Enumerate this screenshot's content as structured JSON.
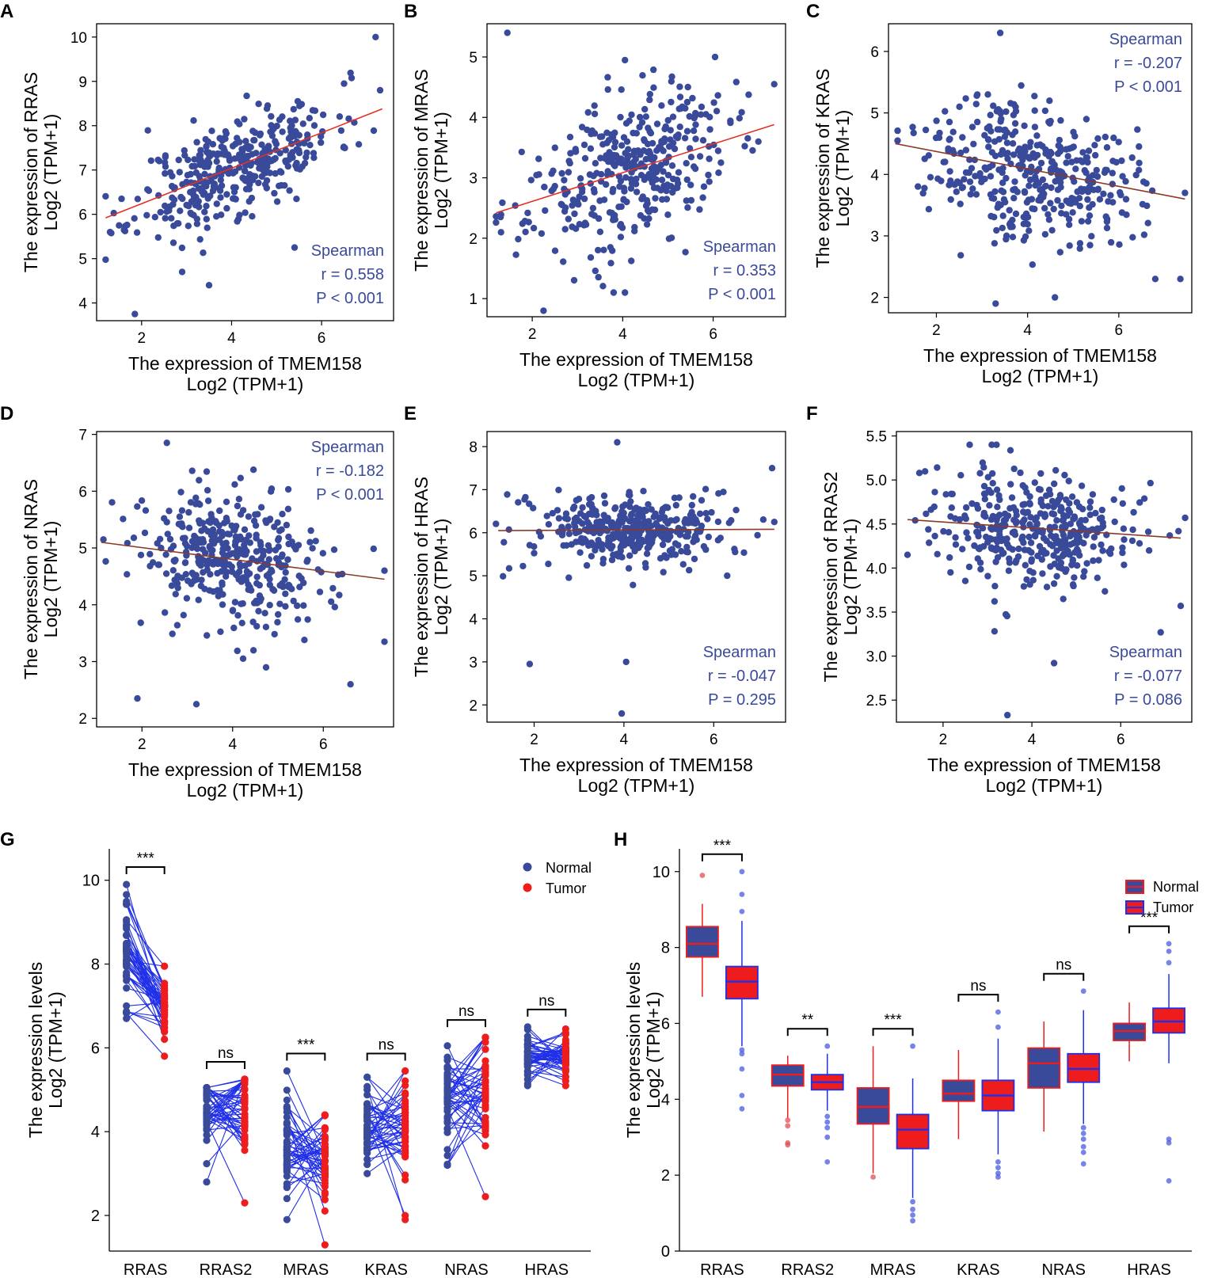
{
  "figure": {
    "colors": {
      "point": "#3a4a9a",
      "stat_text": "#3a4a9a",
      "fit_pos": "#e53024",
      "fit_neg": "#8b3a28",
      "normal": "#3a4a9a",
      "tumor": "#ee1c1c",
      "pair_line": "#2030e8",
      "axis": "#000000"
    }
  },
  "chart_data": [
    {
      "panel": "A",
      "type": "scatter",
      "xlabel_line1": "The expression of TMEM158",
      "xlabel_line2": "Log2 (TPM+1)",
      "ylabel_line1": "The expression of RRAS",
      "ylabel_line2": "Log2 (TPM+1)",
      "xlim": [
        1.0,
        7.6
      ],
      "ylim": [
        3.6,
        10.3
      ],
      "xticks": [
        2,
        4,
        6
      ],
      "yticks": [
        4,
        5,
        6,
        7,
        8,
        9,
        10
      ],
      "fit": {
        "x": [
          1.2,
          7.35
        ],
        "y": [
          5.92,
          8.38
        ]
      },
      "stats": {
        "method": "Spearman",
        "r": "r = 0.558",
        "p": "P < 0.001",
        "position": "bottom-right"
      },
      "points": {
        "n": 380,
        "seed": 11,
        "x_mean": 4.1,
        "x_sd": 1.1,
        "slope": 0.4,
        "intercept": 5.44,
        "noise": 0.55,
        "outliers": [
          [
            7.2,
            10.0
          ],
          [
            1.85,
            3.75
          ],
          [
            3.5,
            4.4
          ],
          [
            2.9,
            4.7
          ],
          [
            1.3,
            5.6
          ],
          [
            7.3,
            8.8
          ],
          [
            6.5,
            8.95
          ],
          [
            5.4,
            5.25
          ],
          [
            1.5,
            5.75
          ]
        ]
      }
    },
    {
      "panel": "B",
      "type": "scatter",
      "xlabel_line1": "The expression of TMEM158",
      "xlabel_line2": "Log2 (TPM+1)",
      "ylabel_line1": "The expression of MRAS",
      "ylabel_line2": "Log2 (TPM+1)",
      "xlim": [
        1.0,
        7.6
      ],
      "ylim": [
        0.7,
        5.55
      ],
      "xticks": [
        2,
        4,
        6
      ],
      "yticks": [
        1,
        2,
        3,
        4,
        5
      ],
      "fit": {
        "x": [
          1.2,
          7.35
        ],
        "y": [
          2.42,
          3.88
        ]
      },
      "stats": {
        "method": "Spearman",
        "r": "r = 0.353",
        "p": "P < 0.001",
        "position": "bottom-right"
      },
      "points": {
        "n": 380,
        "seed": 23,
        "x_mean": 4.1,
        "x_sd": 1.1,
        "slope": 0.24,
        "intercept": 2.13,
        "noise": 0.6,
        "outliers": [
          [
            1.45,
            5.4
          ],
          [
            2.25,
            0.8
          ],
          [
            1.3,
            2.35
          ],
          [
            7.35,
            4.55
          ],
          [
            3.8,
            1.1
          ],
          [
            4.05,
            1.1
          ],
          [
            7.0,
            3.6
          ]
        ]
      }
    },
    {
      "panel": "C",
      "type": "scatter",
      "xlabel_line1": "The expression of TMEM158",
      "xlabel_line2": "Log2 (TPM+1)",
      "ylabel_line1": "The expression of KRAS",
      "ylabel_line2": "Log2 (TPM+1)",
      "xlim": [
        0.95,
        7.6
      ],
      "ylim": [
        1.75,
        6.45
      ],
      "xticks": [
        2,
        4,
        6
      ],
      "yticks": [
        2,
        3,
        4,
        5,
        6
      ],
      "fit": {
        "x": [
          1.1,
          7.45
        ],
        "y": [
          4.5,
          3.6
        ]
      },
      "stats": {
        "method": "Spearman",
        "r": "r = -0.207",
        "p": "P < 0.001",
        "position": "top-right"
      },
      "points": {
        "n": 380,
        "seed": 37,
        "x_mean": 4.1,
        "x_sd": 1.1,
        "slope": -0.14,
        "intercept": 4.65,
        "noise": 0.55,
        "outliers": [
          [
            3.4,
            6.3
          ],
          [
            3.3,
            1.9
          ],
          [
            4.6,
            2.0
          ],
          [
            7.35,
            2.3
          ],
          [
            6.8,
            2.3
          ],
          [
            7.45,
            3.7
          ],
          [
            1.15,
            4.55
          ]
        ]
      }
    },
    {
      "panel": "D",
      "type": "scatter",
      "xlabel_line1": "The expression of TMEM158",
      "xlabel_line2": "Log2 (TPM+1)",
      "ylabel_line1": "The expression of NRAS",
      "ylabel_line2": "Log2 (TPM+1)",
      "xlim": [
        1.0,
        7.55
      ],
      "ylim": [
        1.85,
        7.05
      ],
      "xticks": [
        2,
        4,
        6
      ],
      "yticks": [
        2,
        3,
        4,
        5,
        6,
        7
      ],
      "fit": {
        "x": [
          1.1,
          7.35
        ],
        "y": [
          5.1,
          4.45
        ]
      },
      "stats": {
        "method": "Spearman",
        "r": "r = -0.182",
        "p": "P < 0.001",
        "position": "top-right"
      },
      "points": {
        "n": 380,
        "seed": 53,
        "x_mean": 4.1,
        "x_sd": 1.1,
        "slope": -0.105,
        "intercept": 5.2,
        "noise": 0.6,
        "outliers": [
          [
            2.55,
            6.85
          ],
          [
            3.2,
            2.25
          ],
          [
            1.9,
            2.35
          ],
          [
            6.6,
            2.6
          ],
          [
            7.35,
            3.35
          ],
          [
            7.35,
            4.6
          ],
          [
            1.15,
            5.15
          ]
        ]
      }
    },
    {
      "panel": "E",
      "type": "scatter",
      "xlabel_line1": "The expression of TMEM158",
      "xlabel_line2": "Log2 (TPM+1)",
      "ylabel_line1": "The expression of HRAS",
      "ylabel_line2": "Log2 (TPM+1)",
      "xlim": [
        0.95,
        7.6
      ],
      "ylim": [
        1.6,
        8.35
      ],
      "xticks": [
        2,
        4,
        6
      ],
      "yticks": [
        2,
        3,
        4,
        5,
        6,
        7,
        8
      ],
      "fit": {
        "x": [
          1.2,
          7.35
        ],
        "y": [
          6.05,
          6.08
        ]
      },
      "stats": {
        "method": "Spearman",
        "r": "r = -0.047",
        "p": "P = 0.295",
        "position": "bottom-right"
      },
      "points": {
        "n": 380,
        "seed": 71,
        "x_mean": 4.1,
        "x_sd": 1.1,
        "slope": 0.0,
        "intercept": 6.05,
        "noise": 0.4,
        "outliers": [
          [
            3.95,
            1.8
          ],
          [
            1.9,
            2.95
          ],
          [
            4.05,
            3.0
          ],
          [
            3.85,
            8.1
          ],
          [
            7.3,
            7.5
          ],
          [
            7.35,
            6.25
          ],
          [
            6.3,
            5.0
          ]
        ]
      }
    },
    {
      "panel": "F",
      "type": "scatter",
      "xlabel_line1": "The expression of TMEM158",
      "xlabel_line2": "Log2 (TPM+1)",
      "ylabel_line1": "The expression of RRAS2",
      "ylabel_line2": "Log2 (TPM+1)",
      "xlim": [
        0.95,
        7.6
      ],
      "ylim": [
        2.25,
        5.55
      ],
      "xticks": [
        2,
        4,
        6
      ],
      "yticks": [
        2.5,
        3.0,
        3.5,
        4.0,
        4.5,
        5.0,
        5.5
      ],
      "ytick_labels": [
        "2.5",
        "3.0",
        "3.5",
        "4.0",
        "4.5",
        "5.0",
        "5.5"
      ],
      "fit": {
        "x": [
          1.2,
          7.35
        ],
        "y": [
          4.55,
          4.34
        ]
      },
      "stats": {
        "method": "Spearman",
        "r": "r = -0.077",
        "p": "P = 0.086",
        "position": "bottom-right"
      },
      "points": {
        "n": 380,
        "seed": 89,
        "x_mean": 4.1,
        "x_sd": 1.1,
        "slope": -0.035,
        "intercept": 4.58,
        "noise": 0.33,
        "outliers": [
          [
            3.45,
            2.33
          ],
          [
            4.5,
            2.92
          ],
          [
            7.35,
            3.57
          ],
          [
            6.9,
            3.27
          ],
          [
            1.2,
            4.15
          ],
          [
            7.45,
            4.57
          ],
          [
            2.6,
            5.4
          ]
        ]
      }
    },
    {
      "panel": "G",
      "type": "paired-dot",
      "ylabel_line1": "The expression levels",
      "ylabel_line2": "Log2 (TPM+1)",
      "ylim": [
        1.15,
        10.75
      ],
      "yticks": [
        2,
        4,
        6,
        8,
        10
      ],
      "categories": [
        "RRAS",
        "RRAS2",
        "MRAS",
        "KRAS",
        "NRAS",
        "HRAS"
      ],
      "legend": {
        "normal": "Normal",
        "tumor": "Tumor",
        "position": "top-right"
      },
      "pairs": [
        {
          "normal_mean": 8.15,
          "normal_range": [
            6.7,
            9.9
          ],
          "tumor_mean": 7.1,
          "tumor_range": [
            5.8,
            7.95
          ],
          "sig": "***"
        },
        {
          "normal_mean": 4.5,
          "normal_range": [
            2.8,
            5.05
          ],
          "tumor_mean": 4.6,
          "tumor_range": [
            2.3,
            5.25
          ],
          "sig": "ns"
        },
        {
          "normal_mean": 3.7,
          "normal_range": [
            1.9,
            5.45
          ],
          "tumor_mean": 3.2,
          "tumor_range": [
            1.3,
            4.4
          ],
          "sig": "***"
        },
        {
          "normal_mean": 4.05,
          "normal_range": [
            3.0,
            5.3
          ],
          "tumor_mean": 4.15,
          "tumor_range": [
            1.9,
            5.45
          ],
          "sig": "ns"
        },
        {
          "normal_mean": 4.8,
          "normal_range": [
            3.2,
            6.05
          ],
          "tumor_mean": 4.9,
          "tumor_range": [
            2.45,
            6.25
          ],
          "sig": "ns"
        },
        {
          "normal_mean": 5.8,
          "normal_range": [
            5.1,
            6.5
          ],
          "tumor_mean": 5.85,
          "tumor_range": [
            5.1,
            6.45
          ],
          "sig": "ns"
        }
      ]
    },
    {
      "panel": "H",
      "type": "box",
      "ylabel_line1": "The expression levels",
      "ylabel_line2": "Log2 (TPM+1)",
      "ylim": [
        0,
        10.6
      ],
      "yticks": [
        0,
        2,
        4,
        6,
        8,
        10
      ],
      "categories": [
        "RRAS",
        "RRAS2",
        "MRAS",
        "KRAS",
        "NRAS",
        "HRAS"
      ],
      "legend": {
        "normal": "Normal",
        "tumor": "Tumor",
        "position": "top-right"
      },
      "boxes": [
        {
          "sig": "***",
          "normal": {
            "q1": 7.75,
            "median": 8.1,
            "q3": 8.55,
            "min": 6.7,
            "max": 9.15,
            "outliers": [
              9.9
            ]
          },
          "tumor": {
            "q1": 6.65,
            "median": 7.1,
            "q3": 7.5,
            "min": 5.4,
            "max": 8.7,
            "outliers": [
              8.95,
              9.4,
              10.0,
              5.3,
              5.2,
              4.8,
              4.1,
              3.75
            ]
          }
        },
        {
          "sig": "**",
          "normal": {
            "q1": 4.35,
            "median": 4.65,
            "q3": 4.9,
            "min": 3.5,
            "max": 5.15,
            "outliers": [
              3.45,
              3.3,
              2.85,
              2.8
            ]
          },
          "tumor": {
            "q1": 4.25,
            "median": 4.45,
            "q3": 4.65,
            "min": 3.7,
            "max": 5.2,
            "outliers": [
              5.4,
              3.55,
              3.4,
              3.25,
              3.0,
              2.35
            ]
          }
        },
        {
          "sig": "***",
          "normal": {
            "q1": 3.35,
            "median": 3.8,
            "q3": 4.3,
            "min": 2.05,
            "max": 5.4,
            "outliers": [
              1.95
            ]
          },
          "tumor": {
            "q1": 2.7,
            "median": 3.2,
            "q3": 3.6,
            "min": 1.4,
            "max": 4.55,
            "outliers": [
              5.4,
              1.3,
              1.1,
              0.95,
              0.8
            ]
          }
        },
        {
          "sig": "ns",
          "normal": {
            "q1": 3.95,
            "median": 4.15,
            "q3": 4.5,
            "min": 2.95,
            "max": 5.3,
            "outliers": []
          },
          "tumor": {
            "q1": 3.7,
            "median": 4.1,
            "q3": 4.5,
            "min": 2.55,
            "max": 5.6,
            "outliers": [
              6.3,
              5.9,
              2.35,
              2.2,
              2.05,
              1.95
            ]
          }
        },
        {
          "sig": "ns",
          "normal": {
            "q1": 4.3,
            "median": 4.95,
            "q3": 5.35,
            "min": 3.15,
            "max": 6.05,
            "outliers": []
          },
          "tumor": {
            "q1": 4.45,
            "median": 4.8,
            "q3": 5.2,
            "min": 3.35,
            "max": 6.35,
            "outliers": [
              6.85,
              3.25,
              3.1,
              2.95,
              2.75,
              2.6,
              2.3
            ]
          }
        },
        {
          "sig": "***",
          "normal": {
            "q1": 5.55,
            "median": 5.8,
            "q3": 6.0,
            "min": 5.0,
            "max": 6.55,
            "outliers": []
          },
          "tumor": {
            "q1": 5.75,
            "median": 6.05,
            "q3": 6.4,
            "min": 4.95,
            "max": 7.3,
            "outliers": [
              7.6,
              7.9,
              8.1,
              2.95,
              2.85,
              1.85
            ]
          }
        }
      ]
    }
  ]
}
